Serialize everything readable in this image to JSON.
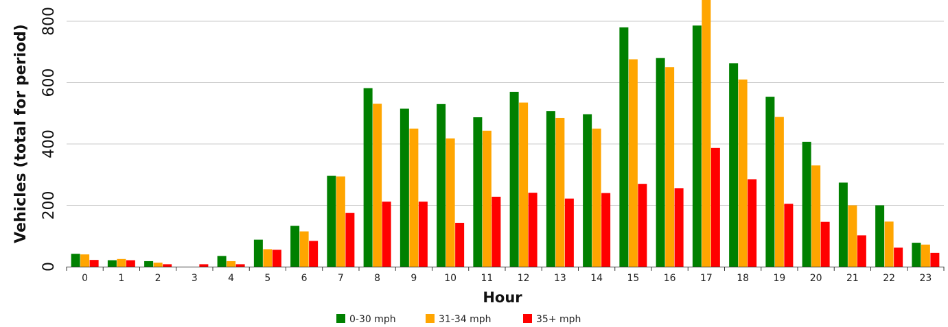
{
  "chart_data": {
    "type": "bar",
    "xlabel": "Hour",
    "ylabel": "Vehicles (total for period)",
    "ylim": [
      0,
      800
    ],
    "yticks": [
      0,
      200,
      400,
      600,
      800
    ],
    "grid": true,
    "legend_position": "bottom",
    "categories": [
      "0",
      "1",
      "2",
      "3",
      "4",
      "5",
      "6",
      "7",
      "8",
      "9",
      "10",
      "11",
      "12",
      "13",
      "14",
      "15",
      "16",
      "17",
      "18",
      "19",
      "20",
      "21",
      "22",
      "23"
    ],
    "series": [
      {
        "name": "0-30 mph",
        "color": "#008000",
        "values": [
          42,
          21,
          18,
          0,
          35,
          88,
          133,
          296,
          582,
          515,
          530,
          487,
          570,
          507,
          497,
          780,
          680,
          786,
          663,
          554,
          407,
          274,
          200,
          78
        ]
      },
      {
        "name": "31-34 mph",
        "color": "#FFA500",
        "values": [
          40,
          25,
          13,
          0,
          18,
          57,
          115,
          294,
          531,
          450,
          418,
          443,
          535,
          485,
          450,
          676,
          650,
          870,
          610,
          488,
          330,
          200,
          147,
          72
        ]
      },
      {
        "name": "35+ mph",
        "color": "#FF0000",
        "values": [
          22,
          21,
          8,
          8,
          8,
          55,
          84,
          175,
          212,
          212,
          143,
          228,
          241,
          222,
          240,
          270,
          256,
          387,
          285,
          205,
          146,
          102,
          62,
          45
        ]
      }
    ]
  }
}
